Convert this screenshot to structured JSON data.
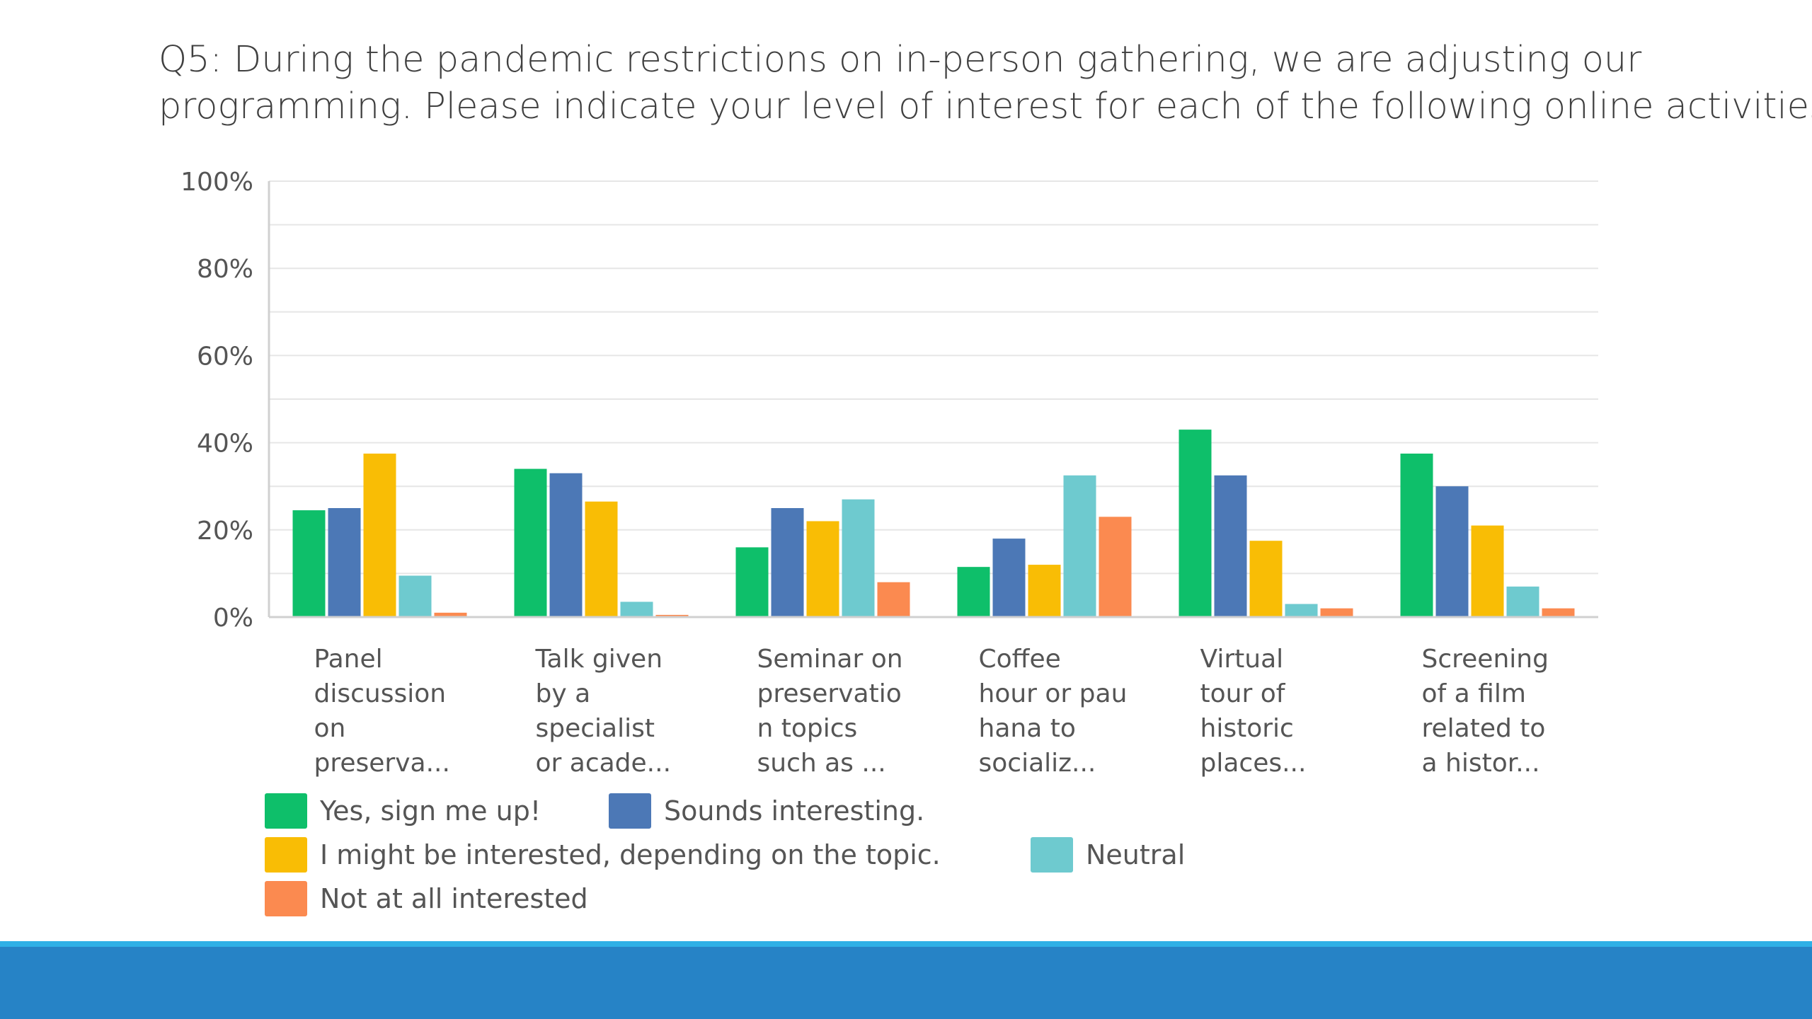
{
  "slide": {
    "title_line1": "Q5: During the pandemic restrictions on in-person gathering, we are adjusting our",
    "title_line2": "programming.  Please indicate your level of interest for each of the following online activities."
  },
  "chart_data": {
    "type": "bar",
    "categories": [
      [
        "Panel",
        "discussion",
        "on",
        "preserva..."
      ],
      [
        "Talk given",
        "by a",
        "specialist",
        "or acade..."
      ],
      [
        "Seminar on",
        "preservatio",
        "n topics",
        "such as ..."
      ],
      [
        "Coffee",
        "hour or pau",
        "hana to",
        "socializ..."
      ],
      [
        "Virtual",
        "tour of",
        "historic",
        "places..."
      ],
      [
        "Screening",
        "of a film",
        "related to",
        "a histor..."
      ]
    ],
    "series": [
      {
        "name": "Yes, sign me up!",
        "color": "#0ebf6a",
        "values": [
          24.5,
          34,
          16,
          11.5,
          43,
          37.5
        ]
      },
      {
        "name": "Sounds interesting.",
        "color": "#4c78b6",
        "values": [
          25,
          33,
          25,
          18,
          32.5,
          30
        ]
      },
      {
        "name": "I might be interested, depending on the topic.",
        "color": "#f9bd05",
        "values": [
          37.5,
          26.5,
          22,
          12,
          17.5,
          21
        ]
      },
      {
        "name": "Neutral",
        "color": "#6ecacf",
        "values": [
          9.5,
          3.5,
          27,
          32.5,
          3,
          7
        ]
      },
      {
        "name": "Not at all interested",
        "color": "#fb8a50",
        "values": [
          1,
          0.5,
          8,
          23,
          2,
          2
        ]
      }
    ],
    "y_ticks": [
      "0%",
      "20%",
      "40%",
      "60%",
      "80%",
      "100%"
    ],
    "ylim": [
      0,
      100
    ],
    "grid": true,
    "legend_position": "bottom-left"
  }
}
